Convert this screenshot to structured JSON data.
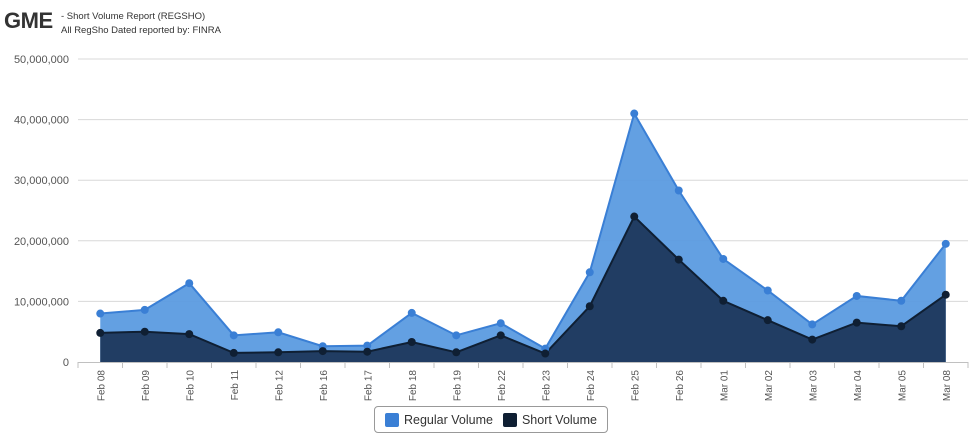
{
  "header": {
    "ticker": "GME",
    "subtitle_line1": "- Short Volume Report  (REGSHO)",
    "subtitle_line2": "All RegSho Dated reported by: FINRA"
  },
  "colors": {
    "regular_fill": "#5b9be0",
    "regular_line": "#3a7fd5",
    "short_fill": "#1f3a5f",
    "short_line": "#0f1f33",
    "grid": "#d8d8d8",
    "axis_text": "#555555"
  },
  "chart_data": {
    "type": "area",
    "title": "",
    "xlabel": "",
    "ylabel": "",
    "ylim": [
      0,
      50000000
    ],
    "y_ticks": [
      0,
      10000000,
      20000000,
      30000000,
      40000000,
      50000000
    ],
    "y_tick_labels": [
      "0",
      "10,000,000",
      "20,000,000",
      "30,000,000",
      "40,000,000",
      "50,000,000"
    ],
    "grid": true,
    "legend_position": "bottom-center",
    "categories": [
      "Feb 08",
      "Feb 09",
      "Feb 10",
      "Feb 11",
      "Feb 12",
      "Feb 16",
      "Feb 17",
      "Feb 18",
      "Feb 19",
      "Feb 22",
      "Feb 23",
      "Feb 24",
      "Feb 25",
      "Feb 26",
      "Mar 01",
      "Mar 02",
      "Mar 03",
      "Mar 04",
      "Mar 05",
      "Mar 08"
    ],
    "series": [
      {
        "name": "Regular Volume",
        "values": [
          8000000,
          8600000,
          13000000,
          4400000,
          4900000,
          2600000,
          2700000,
          8100000,
          4400000,
          6400000,
          2200000,
          14800000,
          41000000,
          28300000,
          17000000,
          11800000,
          6200000,
          10900000,
          10100000,
          19500000
        ]
      },
      {
        "name": "Short Volume",
        "values": [
          4800000,
          5000000,
          4600000,
          1500000,
          1600000,
          1800000,
          1700000,
          3300000,
          1600000,
          4400000,
          1400000,
          9200000,
          24000000,
          16900000,
          10100000,
          6900000,
          3700000,
          6500000,
          5900000,
          11100000
        ]
      }
    ]
  }
}
